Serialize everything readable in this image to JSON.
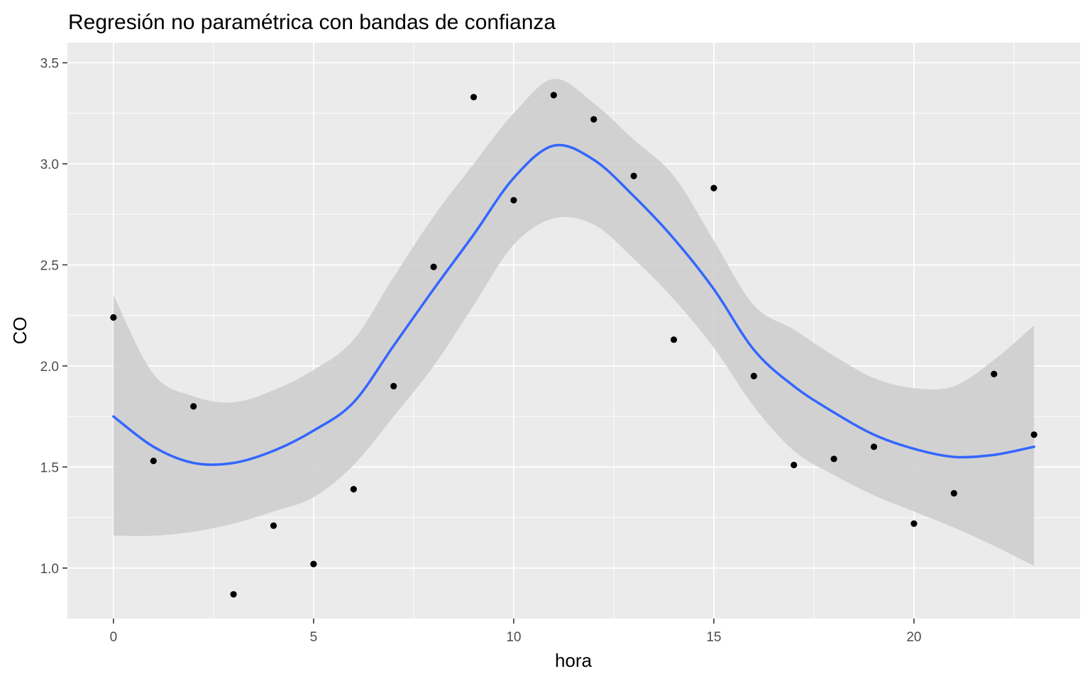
{
  "chart_data": {
    "type": "scatter",
    "title": "Regresión no paramétrica con bandas de confianza",
    "xlabel": "hora",
    "ylabel": "CO",
    "xlim": [
      -1.15,
      24.15
    ],
    "ylim": [
      0.75,
      3.6
    ],
    "x_ticks": [
      0,
      5,
      10,
      15,
      20
    ],
    "x_tick_labels": [
      "0",
      "5",
      "10",
      "15",
      "20"
    ],
    "y_ticks": [
      1.0,
      1.5,
      2.0,
      2.5,
      3.0,
      3.5
    ],
    "y_tick_labels": [
      "1.0",
      "1.5",
      "2.0",
      "2.5",
      "3.0",
      "3.5"
    ],
    "grid": true,
    "panel_background": "#ebebeb",
    "point_color": "#000000",
    "smooth_color": "#3366ff",
    "band_color": "#cccccc",
    "points": {
      "x": [
        0,
        1,
        2,
        3,
        4,
        5,
        6,
        7,
        8,
        9,
        10,
        11,
        12,
        13,
        14,
        15,
        16,
        17,
        18,
        19,
        20,
        21,
        22,
        23
      ],
      "y": [
        2.24,
        1.53,
        1.8,
        0.87,
        1.21,
        1.02,
        1.39,
        1.9,
        2.49,
        3.33,
        2.82,
        3.34,
        3.22,
        2.94,
        2.13,
        2.88,
        1.95,
        1.51,
        1.54,
        1.6,
        1.22,
        1.37,
        1.96,
        1.66
      ]
    },
    "smooth": {
      "x": [
        0,
        1,
        2,
        3,
        4,
        5,
        6,
        7,
        8,
        9,
        10,
        11,
        12,
        13,
        14,
        15,
        16,
        17,
        18,
        19,
        20,
        21,
        22,
        23
      ],
      "y": [
        1.75,
        1.6,
        1.52,
        1.52,
        1.58,
        1.68,
        1.82,
        2.1,
        2.38,
        2.65,
        2.93,
        3.09,
        3.02,
        2.84,
        2.63,
        2.38,
        2.08,
        1.9,
        1.77,
        1.66,
        1.59,
        1.55,
        1.56,
        1.6
      ],
      "lower": [
        1.16,
        1.16,
        1.18,
        1.22,
        1.28,
        1.35,
        1.51,
        1.75,
        2.0,
        2.3,
        2.6,
        2.73,
        2.7,
        2.53,
        2.33,
        2.09,
        1.8,
        1.58,
        1.46,
        1.36,
        1.28,
        1.2,
        1.11,
        1.01
      ],
      "upper": [
        2.35,
        1.96,
        1.85,
        1.82,
        1.88,
        1.98,
        2.13,
        2.44,
        2.74,
        3.0,
        3.25,
        3.42,
        3.3,
        3.12,
        2.94,
        2.62,
        2.3,
        2.18,
        2.05,
        1.94,
        1.89,
        1.9,
        2.03,
        2.2
      ]
    }
  }
}
